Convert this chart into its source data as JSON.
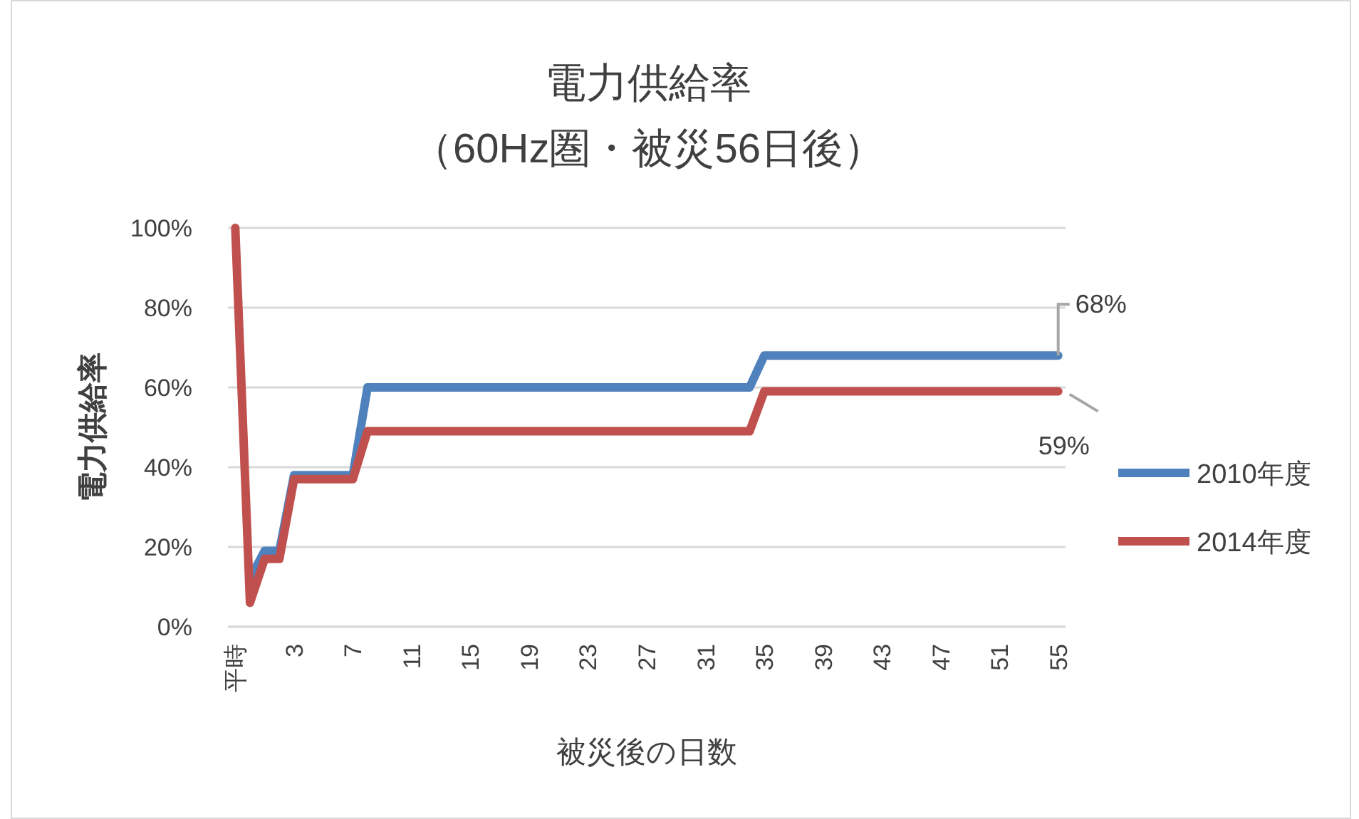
{
  "chart_data": {
    "type": "line",
    "title": "電力供給率",
    "subtitle": "（60Hz圏・被災56日後）",
    "xlabel": "被災後の日数",
    "ylabel": "電力供給率",
    "categories": [
      "平時",
      null,
      null,
      null,
      "3",
      null,
      null,
      null,
      "7",
      null,
      null,
      null,
      "11",
      null,
      null,
      null,
      "15",
      null,
      null,
      null,
      "19",
      null,
      null,
      null,
      "23",
      null,
      null,
      null,
      "27",
      null,
      null,
      null,
      "31",
      null,
      null,
      null,
      "35",
      null,
      null,
      null,
      "39",
      null,
      null,
      null,
      "43",
      null,
      null,
      null,
      "47",
      null,
      null,
      null,
      "51",
      null,
      null,
      null,
      "55"
    ],
    "series": [
      {
        "name": "2010年度",
        "color": "#4f81bd",
        "values": [
          null,
          12,
          19,
          19,
          38,
          38,
          38,
          38,
          38,
          60,
          60,
          60,
          60,
          60,
          60,
          60,
          60,
          60,
          60,
          60,
          60,
          60,
          60,
          60,
          60,
          60,
          60,
          60,
          60,
          60,
          60,
          60,
          60,
          60,
          60,
          60,
          68,
          68,
          68,
          68,
          68,
          68,
          68,
          68,
          68,
          68,
          68,
          68,
          68,
          68,
          68,
          68,
          68,
          68,
          68,
          68,
          68
        ],
        "value_labels": [
          null,
          null,
          null,
          null,
          null,
          null,
          null,
          null,
          null,
          null,
          null,
          null,
          null,
          null,
          null,
          null,
          null,
          null,
          null,
          null,
          null,
          null,
          null,
          null,
          null,
          null,
          null,
          null,
          null,
          null,
          null,
          null,
          null,
          null,
          null,
          null,
          null,
          null,
          null,
          null,
          null,
          null,
          null,
          null,
          null,
          null,
          null,
          null,
          null,
          null,
          null,
          null,
          null,
          null,
          null,
          null,
          "68%"
        ]
      },
      {
        "name": "2014年度",
        "color": "#c0504d",
        "values": [
          100,
          6,
          17,
          17,
          37,
          37,
          37,
          37,
          37,
          49,
          49,
          49,
          49,
          49,
          49,
          49,
          49,
          49,
          49,
          49,
          49,
          49,
          49,
          49,
          49,
          49,
          49,
          49,
          49,
          49,
          49,
          49,
          49,
          49,
          49,
          49,
          59,
          59,
          59,
          59,
          59,
          59,
          59,
          59,
          59,
          59,
          59,
          59,
          59,
          59,
          59,
          59,
          59,
          59,
          59,
          59,
          59
        ],
        "value_labels": [
          null,
          null,
          null,
          null,
          null,
          null,
          null,
          null,
          null,
          null,
          null,
          null,
          null,
          null,
          null,
          null,
          null,
          null,
          null,
          null,
          null,
          null,
          null,
          null,
          null,
          null,
          null,
          null,
          null,
          null,
          null,
          null,
          null,
          null,
          null,
          null,
          null,
          null,
          null,
          null,
          null,
          null,
          null,
          null,
          null,
          null,
          null,
          null,
          null,
          null,
          null,
          null,
          null,
          null,
          null,
          null,
          "59%"
        ]
      }
    ],
    "ylim": [
      0,
      100
    ],
    "yticks": [
      {
        "value": 0,
        "label": "0%"
      },
      {
        "value": 20,
        "label": "20%"
      },
      {
        "value": 40,
        "label": "40%"
      },
      {
        "value": 60,
        "label": "60%"
      },
      {
        "value": 80,
        "label": "80%"
      },
      {
        "value": 100,
        "label": "100%"
      }
    ],
    "grid": "y",
    "legend": "right",
    "marker": "none",
    "line_style": "solid"
  }
}
